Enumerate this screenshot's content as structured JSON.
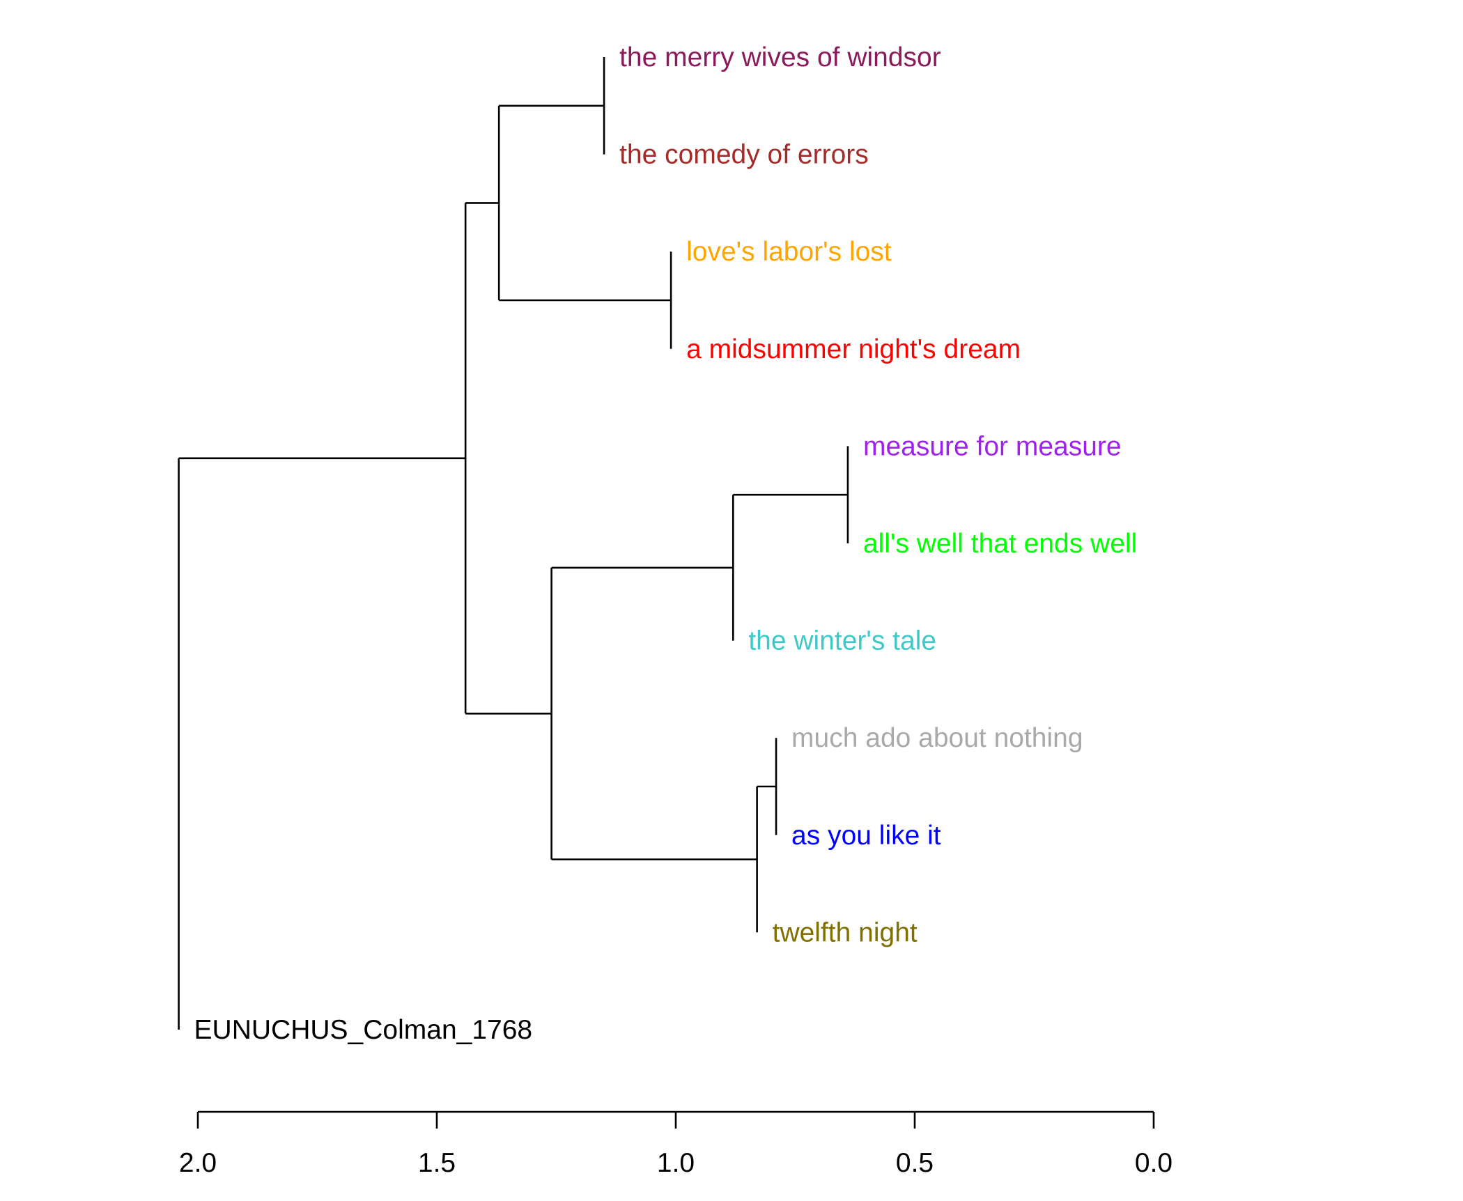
{
  "dendrogram": {
    "leaves": [
      {
        "label": "the merry wives of windsor",
        "color": "#8B1A5A",
        "height": 0.0
      },
      {
        "label": "the comedy of errors",
        "color": "#A52A2A",
        "height": 0.0
      },
      {
        "label": "love's labor's lost",
        "color": "#FFA500",
        "height": 0.0
      },
      {
        "label": "a midsummer night's dream",
        "color": "#FF0000",
        "height": 0.0
      },
      {
        "label": "measure for measure",
        "color": "#A020F0",
        "height": 0.0
      },
      {
        "label": "all's well that ends well",
        "color": "#00FF00",
        "height": 0.0
      },
      {
        "label": "the winter's tale",
        "color": "#40C8C8",
        "height": 0.0
      },
      {
        "label": "much ado about nothing",
        "color": "#A9A9A9",
        "height": 0.0
      },
      {
        "label": "as you like it",
        "color": "#0000FF",
        "height": 0.0
      },
      {
        "label": "twelfth night",
        "color": "#807000",
        "height": 0.0
      },
      {
        "label": "EUNUCHUS_Colman_1768",
        "color": "#000000",
        "height": 0.0
      }
    ],
    "merges": [
      {
        "id": "n1",
        "children": [
          "L0",
          "L1"
        ],
        "height": 1.15
      },
      {
        "id": "n2",
        "children": [
          "L2",
          "L3"
        ],
        "height": 1.01
      },
      {
        "id": "n3",
        "children": [
          "n1",
          "n2"
        ],
        "height": 1.37
      },
      {
        "id": "n4",
        "children": [
          "L4",
          "L5"
        ],
        "height": 0.64
      },
      {
        "id": "n5",
        "children": [
          "n4",
          "L6"
        ],
        "height": 0.88
      },
      {
        "id": "n6",
        "children": [
          "L7",
          "L8"
        ],
        "height": 0.79
      },
      {
        "id": "n7",
        "children": [
          "n6",
          "L9"
        ],
        "height": 0.83
      },
      {
        "id": "n8",
        "children": [
          "n5",
          "n7"
        ],
        "height": 1.26
      },
      {
        "id": "n9",
        "children": [
          "n3",
          "n8"
        ],
        "height": 1.44
      },
      {
        "id": "n10",
        "children": [
          "n9",
          "L10"
        ],
        "height": 2.04
      }
    ],
    "leaf_offsets": [
      -0.03,
      -0.03,
      -0.03,
      -0.03,
      -0.03,
      -0.03,
      -0.03,
      -0.03,
      -0.03,
      -0.03,
      -0.03
    ]
  },
  "axis": {
    "ticks": [
      2.0,
      1.5,
      1.0,
      0.5,
      0.0
    ],
    "tick_labels": [
      "2.0",
      "1.5",
      "1.0",
      "0.5",
      "0.0"
    ],
    "range": [
      2.0,
      0.0
    ]
  }
}
